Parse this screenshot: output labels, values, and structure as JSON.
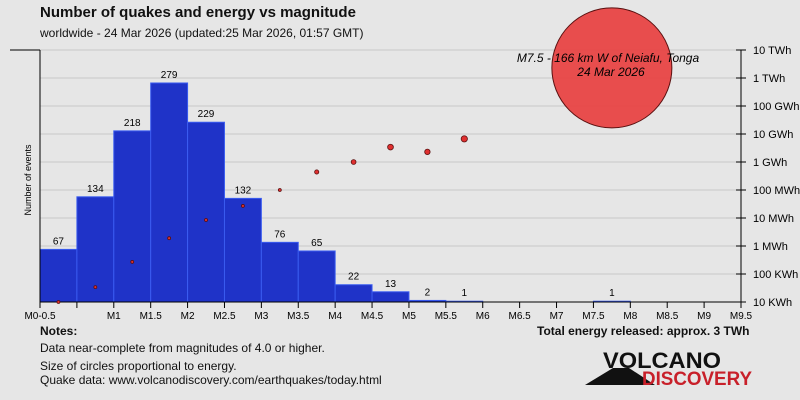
{
  "title": "Number of quakes and energy vs magnitude",
  "subtitle": "worldwide - 24 Mar 2026 (updated:25 Mar 2026, 01:57 GMT)",
  "notes": {
    "heading": "Notes:",
    "lines": [
      "Data near-complete from magnitudes of 4.0 or higher.",
      "Size of circles proportional to energy.",
      "Quake data: www.volcanodiscovery.com/earthquakes/today.html"
    ]
  },
  "total_energy": "Total energy released: approx. 3 TWh",
  "logo": {
    "line1": "VOLCANO",
    "line2": "DISCOVERY"
  },
  "colors": {
    "bar": "#1f33c8",
    "bar_edge": "#3a5cf0",
    "dot": "#e03030",
    "big": "#e84545",
    "bg": "#e6e6e6",
    "grid": "#c8c8c8"
  },
  "chart_data": {
    "type": "bar",
    "ylabel": "Number of events",
    "y2label_ticks": [
      "10 KWh",
      "100 KWh",
      "1 MWh",
      "10 MWh",
      "100 MWh",
      "1 GWh",
      "10 GWh",
      "100 GWh",
      "1 TWh",
      "10 TWh"
    ],
    "xticks": [
      "M0-0.5",
      "M1",
      "M1.5",
      "M2",
      "M2.5",
      "M3",
      "M3.5",
      "M4",
      "M4.5",
      "M5",
      "M5.5",
      "M6",
      "M6.5",
      "M7",
      "M7.5",
      "M8",
      "M8.5",
      "M9",
      "M9.5"
    ],
    "xtick_values": [
      0,
      1,
      1.5,
      2,
      2.5,
      3,
      3.5,
      4,
      4.5,
      5,
      5.5,
      6,
      6.5,
      7,
      7.5,
      8,
      8.5,
      9,
      9.5
    ],
    "xlim": [
      0,
      9.5
    ],
    "ylim": [
      0,
      320
    ],
    "bins": [
      {
        "from": 0,
        "to": 0.5,
        "count": 67,
        "energy_wh": 10000.0
      },
      {
        "from": 0.5,
        "to": 1,
        "count": 134,
        "energy_wh": 34000.0
      },
      {
        "from": 1,
        "to": 1.5,
        "count": 218,
        "energy_wh": 270000.0
      },
      {
        "from": 1.5,
        "to": 2,
        "count": 279,
        "energy_wh": 1900000.0
      },
      {
        "from": 2,
        "to": 2.5,
        "count": 229,
        "energy_wh": 8500000.0
      },
      {
        "from": 2.5,
        "to": 3,
        "count": 132,
        "energy_wh": 27000000.0
      },
      {
        "from": 3,
        "to": 3.5,
        "count": 76,
        "energy_wh": 100000000.0
      },
      {
        "from": 3.5,
        "to": 4,
        "count": 65,
        "energy_wh": 440000000.0
      },
      {
        "from": 4,
        "to": 4.5,
        "count": 22,
        "energy_wh": 1000000000.0
      },
      {
        "from": 4.5,
        "to": 5,
        "count": 13,
        "energy_wh": 3400000000.0
      },
      {
        "from": 5,
        "to": 5.5,
        "count": 2,
        "energy_wh": 2300000000.0
      },
      {
        "from": 5.5,
        "to": 6,
        "count": 1,
        "energy_wh": 6700000000.0
      },
      {
        "from": 7.5,
        "to": 8,
        "count": 1,
        "energy_wh": 2300000000000.0
      }
    ],
    "annotation": {
      "line1": "M7.5 - 166 km W of Neiafu, Tonga",
      "line2": "24 Mar 2026"
    }
  }
}
